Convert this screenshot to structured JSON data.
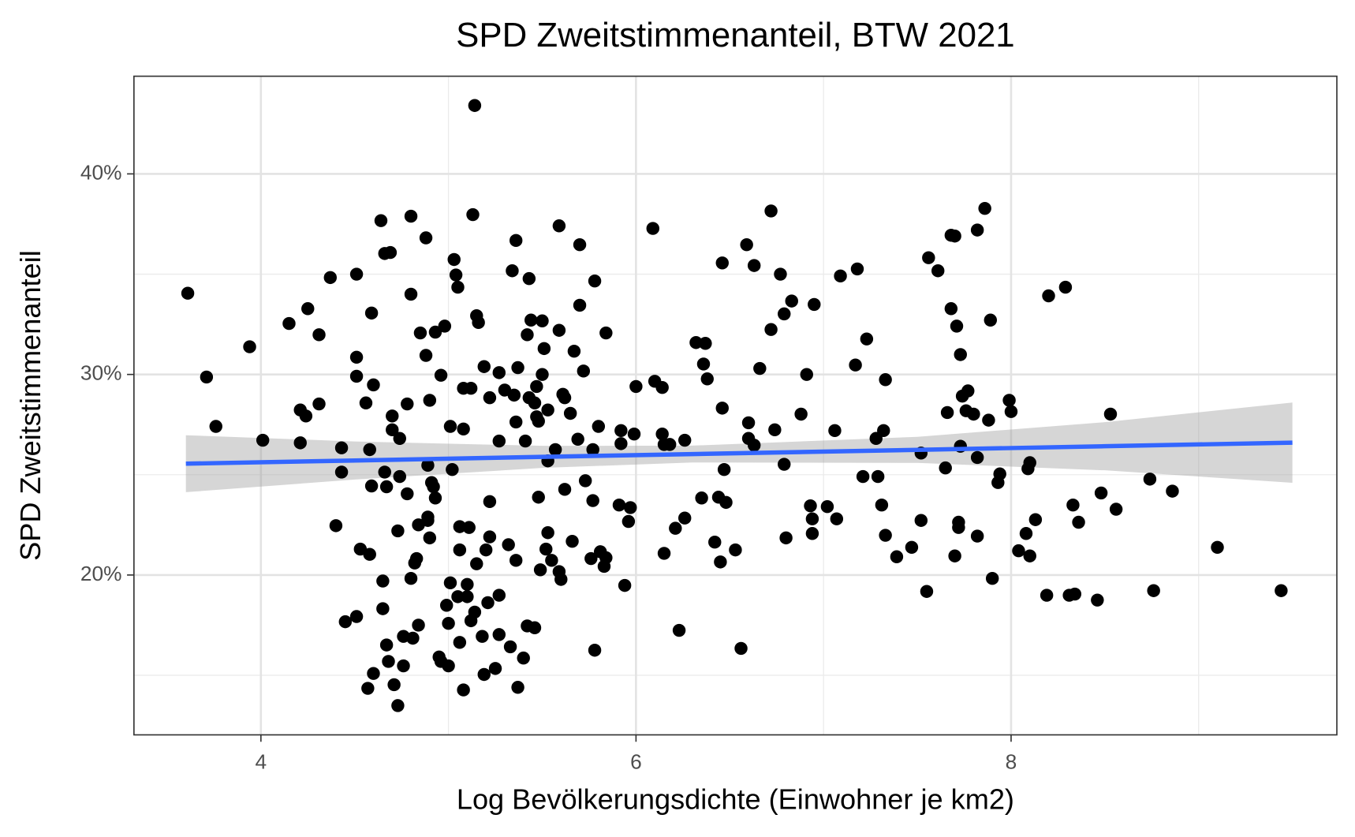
{
  "chart_data": {
    "type": "scatter",
    "title": "SPD Zweitstimmenanteil, BTW 2021",
    "x_label": "Log Bevölkerungsdichte (Einwohner je km2)",
    "y_label": "SPD Zweitstimmenanteil",
    "color": "#000000",
    "grid": true,
    "xlim": [
      3.323,
      9.737
    ],
    "ylim": [
      12.03,
      44.87
    ],
    "xticks": [
      4,
      6,
      8
    ],
    "yticks": [
      {
        "value": 20,
        "label": "20%"
      },
      {
        "value": 30,
        "label": "30%"
      },
      {
        "value": 40,
        "label": "40%"
      }
    ],
    "x_minor_ticks": [
      5,
      7,
      9
    ],
    "y_minor_ticks": [
      15,
      25,
      35
    ],
    "x": [
      3.61,
      3.71,
      3.76,
      3.94,
      4.01,
      4.15,
      4.21,
      4.21,
      4.24,
      4.25,
      4.31,
      4.31,
      4.37,
      4.4,
      4.43,
      4.43,
      4.45,
      4.51,
      4.51,
      4.51,
      4.51,
      4.53,
      4.56,
      4.58,
      4.58,
      4.59,
      4.57,
      4.59,
      4.6,
      4.6,
      4.64,
      4.65,
      4.65,
      4.66,
      4.66,
      4.67,
      4.67,
      4.68,
      4.69,
      4.7,
      4.7,
      4.71,
      4.73,
      4.73,
      4.74,
      4.74,
      4.76,
      4.76,
      4.78,
      4.78,
      4.8,
      4.8,
      4.8,
      4.81,
      4.82,
      4.83,
      4.84,
      4.84,
      4.85,
      4.88,
      4.88,
      4.89,
      4.89,
      4.89,
      4.9,
      4.9,
      4.91,
      4.93,
      4.92,
      4.93,
      4.95,
      4.96,
      4.96,
      4.98,
      4.99,
      5.0,
      5.0,
      5.01,
      5.01,
      5.02,
      5.03,
      5.04,
      5.05,
      5.05,
      5.06,
      5.06,
      5.06,
      5.08,
      5.08,
      5.08,
      5.1,
      5.1,
      5.11,
      5.12,
      5.12,
      5.13,
      5.14,
      5.14,
      5.15,
      5.15,
      5.16,
      5.18,
      5.19,
      5.19,
      5.2,
      5.21,
      5.22,
      5.22,
      5.22,
      5.25,
      5.27,
      5.27,
      5.27,
      5.27,
      5.3,
      5.32,
      5.33,
      5.34,
      5.35,
      5.36,
      5.36,
      5.36,
      5.37,
      5.37,
      5.4,
      5.41,
      5.42,
      5.42,
      5.43,
      5.43,
      5.44,
      5.46,
      5.46,
      5.47,
      5.47,
      5.48,
      5.48,
      5.49,
      5.5,
      5.5,
      5.51,
      5.52,
      5.53,
      5.53,
      5.53,
      5.55,
      5.57,
      5.59,
      5.59,
      5.59,
      5.6,
      5.61,
      5.62,
      5.62,
      5.65,
      5.66,
      5.67,
      5.69,
      5.7,
      5.7,
      5.72,
      5.73,
      5.76,
      5.77,
      5.77,
      5.78,
      5.78,
      5.8,
      5.81,
      5.83,
      5.84,
      5.84,
      5.91,
      5.92,
      5.92,
      5.94,
      5.96,
      5.97,
      5.99,
      6.0,
      6.09,
      6.1,
      6.14,
      6.14,
      6.15,
      6.15,
      6.18,
      6.21,
      6.23,
      6.26,
      6.26,
      6.32,
      6.35,
      6.36,
      6.37,
      6.38,
      6.42,
      6.44,
      6.45,
      6.46,
      6.46,
      6.47,
      6.48,
      6.53,
      6.56,
      6.59,
      6.6,
      6.6,
      6.63,
      6.63,
      6.66,
      6.72,
      6.72,
      6.74,
      6.77,
      6.79,
      6.79,
      6.8,
      6.83,
      6.88,
      6.91,
      6.93,
      6.94,
      6.94,
      6.95,
      7.02,
      7.06,
      7.07,
      7.09,
      7.17,
      7.18,
      7.21,
      7.23,
      7.28,
      7.29,
      7.31,
      7.32,
      7.33,
      7.33,
      7.39,
      7.47,
      7.52,
      7.52,
      7.55,
      7.56,
      7.61,
      7.65,
      7.66,
      7.68,
      7.68,
      7.7,
      7.7,
      7.71,
      7.72,
      7.72,
      7.73,
      7.73,
      7.74,
      7.76,
      7.77,
      7.8,
      7.82,
      7.82,
      7.82,
      7.86,
      7.88,
      7.89,
      7.9,
      7.93,
      7.94,
      7.99,
      8.0,
      8.04,
      8.08,
      8.09,
      8.1,
      8.1,
      8.13,
      8.19,
      8.2,
      8.29,
      8.31,
      8.33,
      8.34,
      8.36,
      8.46,
      8.48,
      8.53,
      8.56,
      8.74,
      8.76,
      8.86,
      9.1,
      9.44
    ],
    "values": [
      34.05,
      29.87,
      27.41,
      31.38,
      26.72,
      32.54,
      28.23,
      26.59,
      27.93,
      33.28,
      31.98,
      28.53,
      34.83,
      22.46,
      26.34,
      25.13,
      17.67,
      17.93,
      30.86,
      35.0,
      29.91,
      21.29,
      28.58,
      26.25,
      21.03,
      33.06,
      14.35,
      24.44,
      15.09,
      29.48,
      37.67,
      19.7,
      18.32,
      36.03,
      25.13,
      24.4,
      16.51,
      15.69,
      36.08,
      27.93,
      27.24,
      14.53,
      13.49,
      22.2,
      24.91,
      26.81,
      15.47,
      16.94,
      24.05,
      28.53,
      37.89,
      34.0,
      19.83,
      16.85,
      20.6,
      20.82,
      17.5,
      22.5,
      32.07,
      30.95,
      36.81,
      25.47,
      22.89,
      22.72,
      21.85,
      28.71,
      24.61,
      23.84,
      24.4,
      32.11,
      15.91,
      15.69,
      29.96,
      32.41,
      18.49,
      15.47,
      17.59,
      19.61,
      27.41,
      25.26,
      35.73,
      34.96,
      34.35,
      18.92,
      16.64,
      21.25,
      22.41,
      14.27,
      27.28,
      29.31,
      19.53,
      18.92,
      22.37,
      17.72,
      29.31,
      37.97,
      18.15,
      43.41,
      20.56,
      32.93,
      32.59,
      16.94,
      30.39,
      15.04,
      21.25,
      18.62,
      23.66,
      21.9,
      28.84,
      15.34,
      18.99,
      26.68,
      30.09,
      17.03,
      29.22,
      21.51,
      16.42,
      35.17,
      28.97,
      27.63,
      36.68,
      20.73,
      14.4,
      30.34,
      15.86,
      26.68,
      31.98,
      17.46,
      34.78,
      28.84,
      32.71,
      17.37,
      28.58,
      29.4,
      27.89,
      23.88,
      27.67,
      20.26,
      32.67,
      30.0,
      31.29,
      21.29,
      25.69,
      28.23,
      22.11,
      20.73,
      26.25,
      32.2,
      37.41,
      20.17,
      19.78,
      29.01,
      24.27,
      28.84,
      28.06,
      21.68,
      31.16,
      26.77,
      36.47,
      33.45,
      30.17,
      24.7,
      20.82,
      26.25,
      23.71,
      34.66,
      16.25,
      27.41,
      21.16,
      20.43,
      20.86,
      32.07,
      23.49,
      26.55,
      27.2,
      19.48,
      22.67,
      23.36,
      27.03,
      29.4,
      37.28,
      29.66,
      29.35,
      27.03,
      21.08,
      26.51,
      26.51,
      22.33,
      17.24,
      22.84,
      26.72,
      31.59,
      23.84,
      30.52,
      31.55,
      29.78,
      21.64,
      23.88,
      20.65,
      35.56,
      28.32,
      25.26,
      23.62,
      21.25,
      16.34,
      36.47,
      27.59,
      26.81,
      35.43,
      26.47,
      30.3,
      38.15,
      32.24,
      27.24,
      35.0,
      33.02,
      25.52,
      21.85,
      33.66,
      28.02,
      30.0,
      23.45,
      22.07,
      22.8,
      33.49,
      23.41,
      27.2,
      22.8,
      34.91,
      30.47,
      35.26,
      24.91,
      31.77,
      26.81,
      24.91,
      23.49,
      27.2,
      21.98,
      29.74,
      20.91,
      21.38,
      22.72,
      26.08,
      19.18,
      35.82,
      35.17,
      25.34,
      28.1,
      36.94,
      33.28,
      36.9,
      20.95,
      32.41,
      22.63,
      22.37,
      26.42,
      30.99,
      28.92,
      28.19,
      29.18,
      28.02,
      37.2,
      25.86,
      21.94,
      38.28,
      27.72,
      32.71,
      19.83,
      24.61,
      25.04,
      28.71,
      28.15,
      21.21,
      22.07,
      25.3,
      25.6,
      20.95,
      22.76,
      18.99,
      33.92,
      34.35,
      18.99,
      23.49,
      19.05,
      22.63,
      18.75,
      24.09,
      28.02,
      23.28,
      24.78,
      19.22,
      24.18,
      21.38,
      19.22
    ],
    "trend": {
      "color": "#3366ff",
      "band_color": "#999999",
      "x": [
        3.6,
        4.5,
        5.5,
        6.3,
        7.5,
        8.5,
        9.5
      ],
      "values": [
        25.55,
        25.71,
        25.89,
        26.03,
        26.24,
        26.42,
        26.6
      ],
      "lower": [
        24.13,
        24.76,
        25.34,
        25.61,
        25.59,
        25.22,
        24.6
      ],
      "upper": [
        26.97,
        26.66,
        26.44,
        26.45,
        26.89,
        27.62,
        28.6
      ]
    }
  }
}
